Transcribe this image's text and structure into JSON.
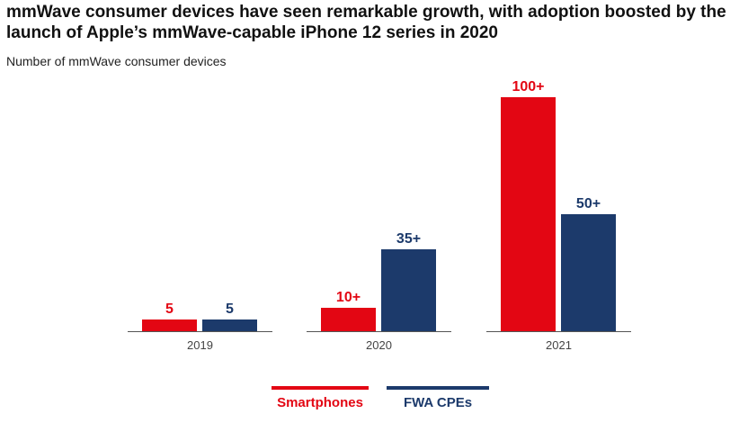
{
  "title": "mmWave consumer devices have seen remarkable growth, with adoption boosted by the launch of Apple’s mmWave-capable iPhone 12 series in 2020",
  "subtitle": "Number of mmWave consumer devices",
  "chart_data": {
    "type": "bar",
    "categories": [
      "2019",
      "2020",
      "2021"
    ],
    "series": [
      {
        "name": "Smartphones",
        "values": [
          5,
          10,
          100
        ],
        "labels": [
          "5",
          "10+",
          "100+"
        ],
        "color": "#e30613"
      },
      {
        "name": "FWA CPEs",
        "values": [
          5,
          35,
          50
        ],
        "labels": [
          "5",
          "35+",
          "50+"
        ],
        "color": "#1c3a6b"
      }
    ],
    "ylim": [
      0,
      100
    ],
    "grid": false,
    "legend": "bottom"
  }
}
